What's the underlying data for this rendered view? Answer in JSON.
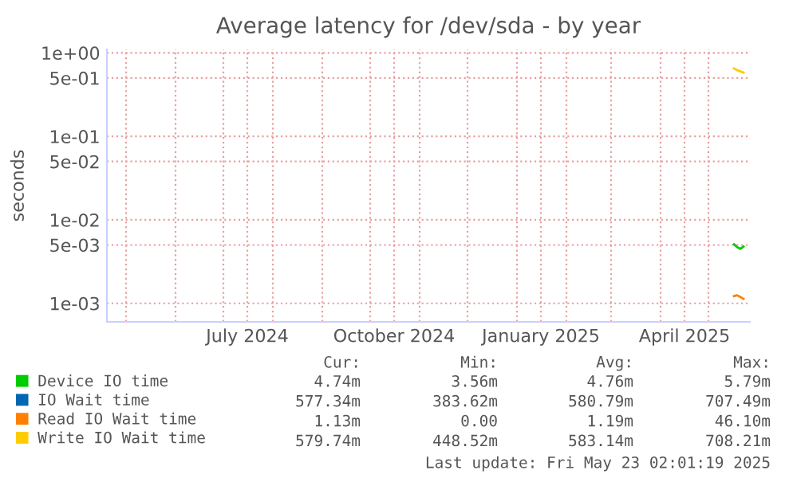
{
  "chart_data": {
    "type": "line",
    "title": "Average latency for /dev/sda - by year",
    "ylabel": "seconds",
    "log": "y",
    "xlim": [
      "2024-04-19",
      "2025-05-27"
    ],
    "xticks": [
      {
        "value": "2024-05-01",
        "label": null
      },
      {
        "value": "2024-06-01",
        "label": null
      },
      {
        "value": "2024-07-01",
        "label": null
      },
      {
        "value": "2024-07-16",
        "label": "July 2024"
      },
      {
        "value": "2024-08-01",
        "label": null
      },
      {
        "value": "2024-09-01",
        "label": null
      },
      {
        "value": "2024-10-01",
        "label": null
      },
      {
        "value": "2024-10-16",
        "label": "October 2024"
      },
      {
        "value": "2024-11-01",
        "label": null
      },
      {
        "value": "2024-12-01",
        "label": null
      },
      {
        "value": "2025-01-01",
        "label": null
      },
      {
        "value": "2025-01-16",
        "label": "January 2025"
      },
      {
        "value": "2025-02-01",
        "label": null
      },
      {
        "value": "2025-03-01",
        "label": null
      },
      {
        "value": "2025-04-01",
        "label": null
      },
      {
        "value": "2025-04-16",
        "label": "April 2025"
      },
      {
        "value": "2025-05-01",
        "label": null
      }
    ],
    "ylim": [
      0.0006,
      1.1
    ],
    "yticks": [
      {
        "value": 0.001,
        "label": "1e-03"
      },
      {
        "value": 0.005,
        "label": "5e-03"
      },
      {
        "value": 0.01,
        "label": "1e-02"
      },
      {
        "value": 0.05,
        "label": "5e-02"
      },
      {
        "value": 0.1,
        "label": "1e-01"
      },
      {
        "value": 0.5,
        "label": "5e-01"
      },
      {
        "value": 1,
        "label": "1e+00"
      }
    ],
    "grid": true,
    "legend": "bottom",
    "marker": "none",
    "line_style": "solid",
    "series": [
      {
        "name": "Device IO time",
        "color": "#00cc00",
        "x": [
          "2025-05-17",
          "2025-05-19",
          "2025-05-21",
          "2025-05-23"
        ],
        "values": [
          0.0051,
          0.0047,
          0.0045,
          0.0048
        ]
      },
      {
        "name": "IO Wait time",
        "color": "#0066b3"
      },
      {
        "name": "Read IO Wait time",
        "color": "#ff8000",
        "x": [
          "2025-05-17",
          "2025-05-19",
          "2025-05-21",
          "2025-05-23"
        ],
        "values": [
          0.00122,
          0.00125,
          0.00119,
          0.00113
        ]
      },
      {
        "name": "Write IO Wait time",
        "color": "#ffcc00",
        "x": [
          "2025-05-17",
          "2025-05-19",
          "2025-05-21",
          "2025-05-23"
        ],
        "values": [
          0.65,
          0.62,
          0.6,
          0.58
        ]
      }
    ],
    "annotations": [
      "Cur:",
      "Min:",
      "Avg:",
      "Max:",
      "4.74m",
      "3.56m",
      "4.76m",
      "5.79m",
      "577.34m",
      "383.62m",
      "580.79m",
      "707.49m",
      "1.13m",
      "0.00",
      "1.19m",
      "46.10m",
      "579.74m",
      "448.52m",
      "583.14m",
      "708.21m",
      "Last update: Fri May 23 02:01:19 2025"
    ]
  }
}
